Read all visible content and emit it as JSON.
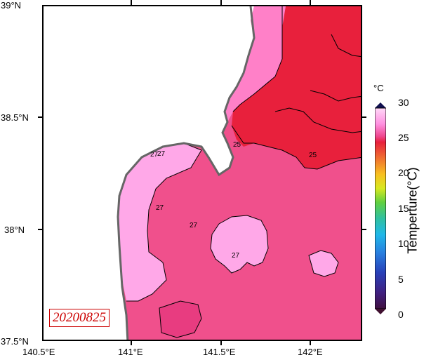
{
  "map": {
    "lat_labels": [
      "39°N",
      "38.5°N",
      "38°N",
      "37.5°N"
    ],
    "lon_labels": [
      "140.5°E",
      "141°E",
      "141.5°E",
      "142°E"
    ],
    "date": "20200825",
    "contour_labels": [
      "27",
      "25",
      "27",
      "25",
      "27",
      "27"
    ]
  },
  "colorbar": {
    "unit": "°C",
    "title": "Temperture(°C)",
    "ticks": [
      "30",
      "25",
      "20",
      "15",
      "10",
      "5",
      "0"
    ],
    "range": [
      0,
      30
    ]
  },
  "colors": {
    "warm_red": "#e8203c",
    "magenta": "#f0508c",
    "pink": "#ff80c8",
    "light_pink": "#ffa8e8",
    "coast_gray": "#666666"
  }
}
